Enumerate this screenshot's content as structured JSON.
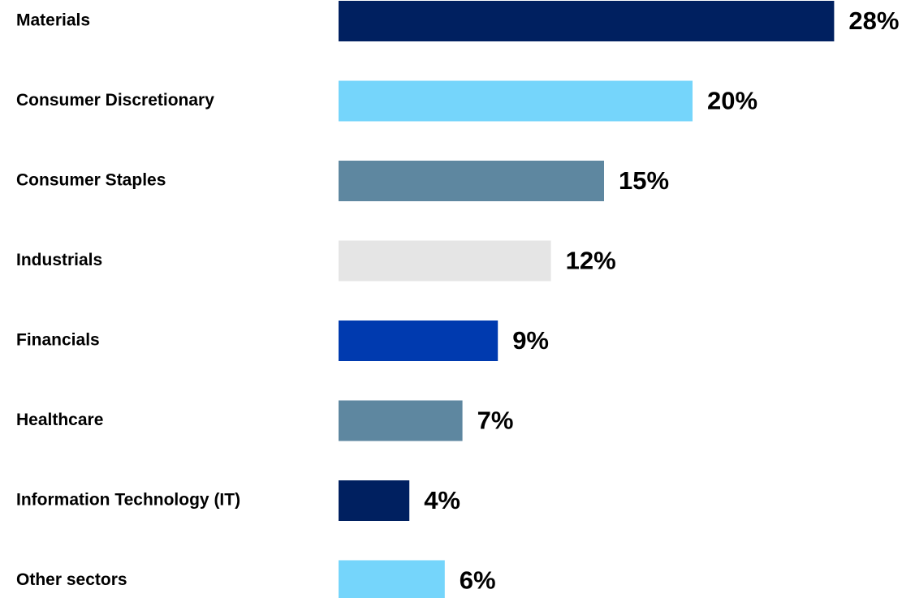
{
  "chart_data": {
    "type": "bar",
    "orientation": "horizontal",
    "categories": [
      "Materials",
      "Consumer Discretionary",
      "Consumer Staples",
      "Industrials",
      "Financials",
      "Healthcare",
      "Information Technology (IT)",
      "Other sectors"
    ],
    "values": [
      28,
      20,
      15,
      12,
      9,
      7,
      4,
      6
    ],
    "value_labels": [
      "28%",
      "20%",
      "15%",
      "12%",
      "9%",
      "7%",
      "4%",
      "6%"
    ],
    "colors": [
      "#002060",
      "#75d5fb",
      "#5e87a0",
      "#e5e5e5",
      "#003aaf",
      "#5e87a0",
      "#002060",
      "#75d5fb"
    ]
  }
}
